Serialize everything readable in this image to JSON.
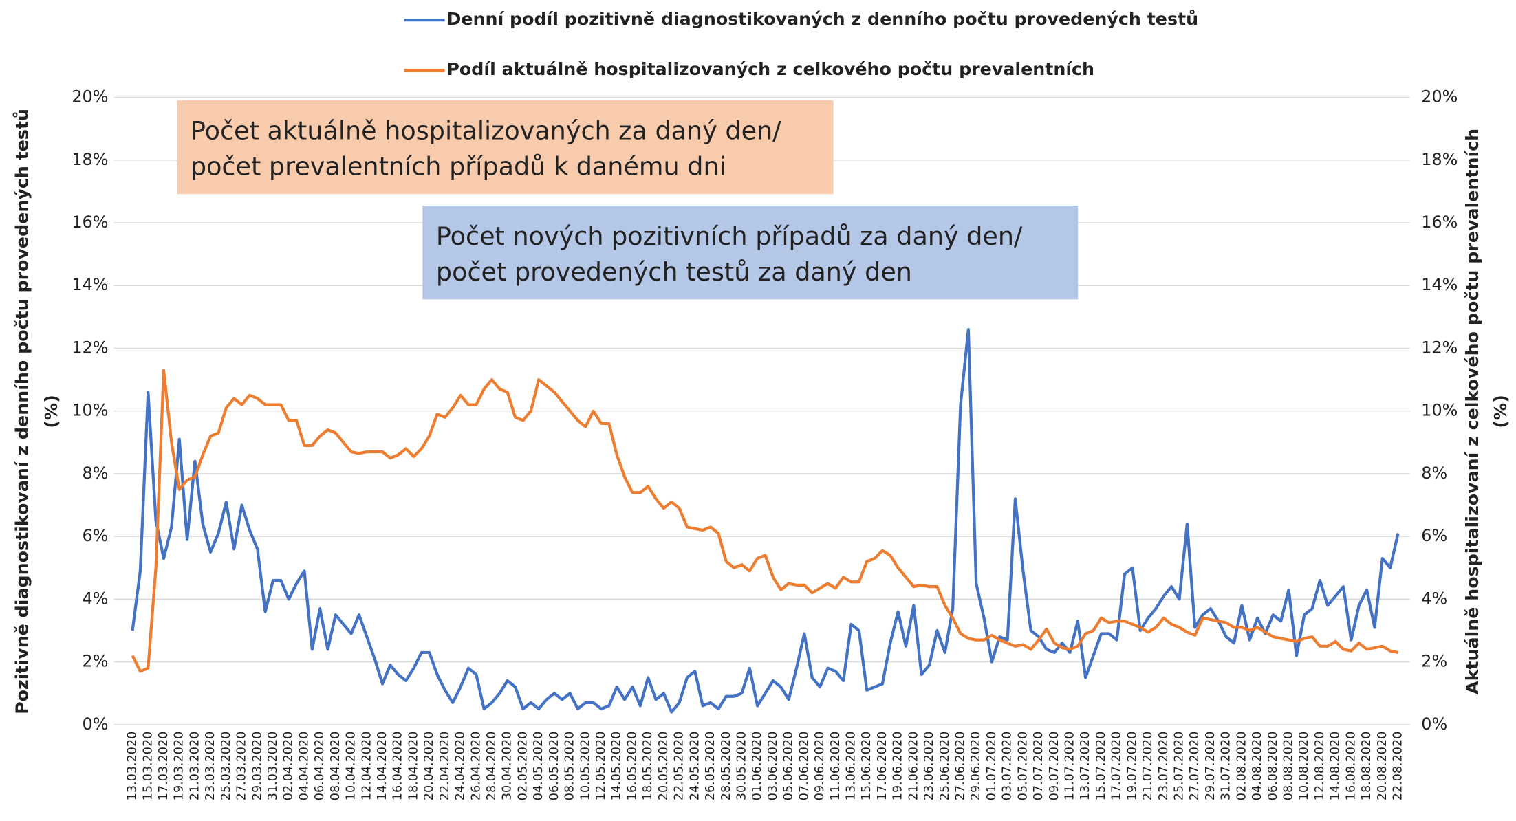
{
  "chart_data": {
    "type": "line",
    "categories": [
      "13.03.2020",
      null,
      "15.03.2020",
      null,
      "17.03.2020",
      null,
      "19.03.2020",
      null,
      "21.03.2020",
      null,
      "23.03.2020",
      null,
      "25.03.2020",
      null,
      "27.03.2020",
      null,
      "29.03.2020",
      null,
      "31.03.2020",
      null,
      "02.04.2020",
      null,
      "04.04.2020",
      null,
      "06.04.2020",
      null,
      "08.04.2020",
      null,
      "10.04.2020",
      null,
      "12.04.2020",
      null,
      "14.04.2020",
      null,
      "16.04.2020",
      null,
      "18.04.2020",
      null,
      "20.04.2020",
      null,
      "22.04.2020",
      null,
      "24.04.2020",
      null,
      "26.04.2020",
      null,
      "28.04.2020",
      null,
      "30.04.2020",
      null,
      "02.05.2020",
      null,
      "04.05.2020",
      null,
      "06.05.2020",
      null,
      "08.05.2020",
      null,
      "10.05.2020",
      null,
      "12.05.2020",
      null,
      "14.05.2020",
      null,
      "16.05.2020",
      null,
      "18.05.2020",
      null,
      "20.05.2020",
      null,
      "22.05.2020",
      null,
      "24.05.2020",
      null,
      "26.05.2020",
      null,
      "28.05.2020",
      null,
      "30.05.2020",
      null,
      "01.06.2020",
      null,
      "03.06.2020",
      null,
      "05.06.2020",
      null,
      "07.06.2020",
      null,
      "09.06.2020",
      null,
      "11.06.2020",
      null,
      "13.06.2020",
      null,
      "15.06.2020",
      null,
      "17.06.2020",
      null,
      "19.06.2020",
      null,
      "21.06.2020",
      null,
      "23.06.2020",
      null,
      "25.06.2020",
      null,
      "27.06.2020",
      null,
      "29.06.2020",
      null,
      "01.07.2020",
      null,
      "03.07.2020",
      null,
      "05.07.2020",
      null,
      "07.07.2020",
      null,
      "09.07.2020",
      null,
      "11.07.2020",
      null,
      "13.07.2020",
      null,
      "15.07.2020",
      null,
      "17.07.2020",
      null,
      "19.07.2020",
      null,
      "21.07.2020",
      null,
      "23.07.2020",
      null,
      "25.07.2020",
      null,
      "27.07.2020",
      null,
      "29.07.2020",
      null,
      "31.07.2020",
      null,
      "02.08.2020",
      null,
      "04.08.2020",
      null,
      "06.08.2020",
      null,
      "08.08.2020",
      null,
      "10.08.2020",
      null,
      "12.08.2020",
      null,
      "14.08.2020",
      null,
      "16.08.2020",
      null,
      "18.08.2020",
      null,
      "20.08.2020",
      null,
      "22.08.2020"
    ],
    "series": [
      {
        "name": "Denní podíl pozitivně diagnostikovaných z denního počtu provedených testů",
        "color": "#4472c4",
        "axis": "y",
        "values": [
          3.0,
          4.9,
          10.6,
          6.5,
          5.3,
          6.3,
          9.1,
          5.9,
          8.4,
          6.4,
          5.5,
          6.1,
          7.1,
          5.6,
          7.0,
          6.2,
          5.6,
          3.6,
          4.6,
          4.6,
          4.0,
          4.5,
          4.9,
          2.4,
          3.7,
          2.4,
          3.5,
          3.2,
          2.9,
          3.5,
          2.8,
          2.1,
          1.3,
          1.9,
          1.6,
          1.4,
          1.8,
          2.3,
          2.3,
          1.6,
          1.1,
          0.7,
          1.2,
          1.8,
          1.6,
          0.5,
          0.7,
          1.0,
          1.4,
          1.2,
          0.5,
          0.7,
          0.5,
          0.8,
          1.0,
          0.8,
          1.0,
          0.5,
          0.7,
          0.7,
          0.5,
          0.6,
          1.2,
          0.8,
          1.2,
          0.6,
          1.5,
          0.8,
          1.0,
          0.4,
          0.7,
          1.5,
          1.7,
          0.6,
          0.7,
          0.5,
          0.9,
          0.9,
          1.0,
          1.8,
          0.6,
          1.0,
          1.4,
          1.2,
          0.8,
          1.8,
          2.9,
          1.5,
          1.2,
          1.8,
          1.7,
          1.4,
          3.2,
          3.0,
          1.1,
          1.2,
          1.3,
          2.6,
          3.6,
          2.5,
          3.8,
          1.6,
          1.9,
          3.0,
          2.3,
          3.7,
          10.2,
          12.6,
          4.5,
          3.4,
          2.0,
          2.8,
          2.7,
          7.2,
          4.9,
          3.0,
          2.8,
          2.4,
          2.3,
          2.6,
          2.3,
          3.3,
          1.5,
          2.2,
          2.9,
          2.9,
          2.7,
          4.8,
          5.0,
          3.0,
          3.4,
          3.7,
          4.1,
          4.4,
          4.0,
          6.4,
          3.1,
          3.5,
          3.7,
          3.3,
          2.8,
          2.6,
          3.8,
          2.7,
          3.4,
          2.9,
          3.5,
          3.3,
          4.3,
          2.2,
          3.5,
          3.7,
          4.6,
          3.8,
          4.1,
          4.4,
          2.7,
          3.8,
          4.3,
          3.1,
          5.3,
          5.0,
          6.1
        ]
      },
      {
        "name": "Podíl aktuálně hospitalizovaných z celkového počtu prevalentních",
        "color": "#ed7d31",
        "axis": "y2",
        "values": [
          2.2,
          1.7,
          1.8,
          5.0,
          11.3,
          9.0,
          7.5,
          7.8,
          7.9,
          8.6,
          9.2,
          9.3,
          10.1,
          10.4,
          10.2,
          10.5,
          10.4,
          10.2,
          10.2,
          10.2,
          9.7,
          9.7,
          8.9,
          8.9,
          9.2,
          9.4,
          9.3,
          9.0,
          8.7,
          8.65,
          8.7,
          8.7,
          8.7,
          8.5,
          8.6,
          8.8,
          8.55,
          8.8,
          9.2,
          9.9,
          9.8,
          10.1,
          10.5,
          10.2,
          10.2,
          10.7,
          11.0,
          10.7,
          10.6,
          9.8,
          9.7,
          10.0,
          11.0,
          10.8,
          10.6,
          10.3,
          10.0,
          9.7,
          9.5,
          10.0,
          9.6,
          9.6,
          8.6,
          7.9,
          7.4,
          7.4,
          7.6,
          7.2,
          6.9,
          7.1,
          6.9,
          6.3,
          6.25,
          6.2,
          6.3,
          6.1,
          5.2,
          5.0,
          5.1,
          4.9,
          5.3,
          5.4,
          4.7,
          4.3,
          4.5,
          4.45,
          4.45,
          4.2,
          4.35,
          4.5,
          4.35,
          4.7,
          4.55,
          4.55,
          5.2,
          5.3,
          5.55,
          5.4,
          5.0,
          4.7,
          4.4,
          4.45,
          4.4,
          4.4,
          3.8,
          3.4,
          2.9,
          2.75,
          2.7,
          2.7,
          2.85,
          2.7,
          2.6,
          2.5,
          2.55,
          2.4,
          2.7,
          3.05,
          2.6,
          2.45,
          2.4,
          2.5,
          2.9,
          3.0,
          3.4,
          3.25,
          3.3,
          3.3,
          3.2,
          3.1,
          2.95,
          3.1,
          3.4,
          3.2,
          3.1,
          2.95,
          2.85,
          3.4,
          3.35,
          3.3,
          3.25,
          3.1,
          3.1,
          3.0,
          3.1,
          2.95,
          2.8,
          2.75,
          2.7,
          2.65,
          2.75,
          2.8,
          2.5,
          2.5,
          2.65,
          2.4,
          2.35,
          2.6,
          2.4,
          2.45,
          2.5,
          2.35,
          2.3
        ]
      }
    ],
    "ylabel": "Pozitivně diagnostikovaní z denního počtu provedených testů",
    "ylabel_unit": "(%)",
    "y2label": "Aktuálně hospitalizovaní z celkového počtu prevalentních",
    "y2label_unit": "(%)",
    "ylim": [
      0,
      20
    ],
    "yticks": [
      {
        "value": 0,
        "label": "0%"
      },
      {
        "value": 2,
        "label": "2%"
      },
      {
        "value": 4,
        "label": "4%"
      },
      {
        "value": 6,
        "label": "6%"
      },
      {
        "value": 8,
        "label": "8%"
      },
      {
        "value": 10,
        "label": "10%"
      },
      {
        "value": 12,
        "label": "12%"
      },
      {
        "value": 14,
        "label": "14%"
      },
      {
        "value": 16,
        "label": "16%"
      },
      {
        "value": 18,
        "label": "18%"
      },
      {
        "value": 20,
        "label": "20%"
      }
    ],
    "y2lim": [
      0,
      20
    ],
    "y2ticks": [
      {
        "value": 0,
        "label": "0%"
      },
      {
        "value": 2,
        "label": "2%"
      },
      {
        "value": 4,
        "label": "4%"
      },
      {
        "value": 6,
        "label": "6%"
      },
      {
        "value": 8,
        "label": "8%"
      },
      {
        "value": 10,
        "label": "10%"
      },
      {
        "value": 12,
        "label": "12%"
      },
      {
        "value": 14,
        "label": "14%"
      },
      {
        "value": 16,
        "label": "16%"
      },
      {
        "value": 18,
        "label": "18%"
      },
      {
        "value": 20,
        "label": "20%"
      }
    ],
    "grid": true,
    "legend": "top",
    "annotations": [
      {
        "lines": [
          "Počet aktuálně hospitalizovaných za daný den/",
          "počet prevalentních případů k danému dni"
        ],
        "color": "#f8cbad"
      },
      {
        "lines": [
          "Počet nových pozitivních případů za daný den/",
          "počet provedených testů za daný den"
        ],
        "color": "#b4c7e7"
      }
    ]
  }
}
